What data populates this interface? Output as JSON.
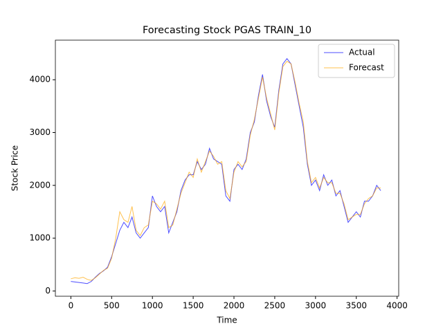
{
  "chart_data": {
    "type": "line",
    "title": "Forecasting Stock PGAS TRAIN_10",
    "xlabel": "Time",
    "ylabel": "Stock Price",
    "x": [
      0,
      50,
      100,
      150,
      200,
      250,
      300,
      350,
      400,
      450,
      500,
      550,
      600,
      650,
      700,
      750,
      800,
      850,
      900,
      950,
      1000,
      1050,
      1100,
      1150,
      1200,
      1250,
      1300,
      1350,
      1400,
      1450,
      1500,
      1550,
      1600,
      1650,
      1700,
      1750,
      1800,
      1850,
      1900,
      1950,
      2000,
      2050,
      2100,
      2150,
      2200,
      2250,
      2300,
      2350,
      2400,
      2450,
      2500,
      2550,
      2600,
      2650,
      2700,
      2750,
      2800,
      2850,
      2900,
      2950,
      3000,
      3050,
      3100,
      3150,
      3200,
      3250,
      3300,
      3350,
      3400,
      3450,
      3500,
      3550,
      3600,
      3650,
      3700,
      3750,
      3800
    ],
    "series": [
      {
        "name": "Actual",
        "color": "#0000ff",
        "values": [
          180,
          170,
          160,
          150,
          140,
          180,
          260,
          330,
          380,
          450,
          650,
          900,
          1150,
          1300,
          1200,
          1400,
          1100,
          1000,
          1100,
          1200,
          1800,
          1600,
          1500,
          1600,
          1100,
          1300,
          1500,
          1900,
          2100,
          2200,
          2200,
          2450,
          2300,
          2400,
          2700,
          2500,
          2450,
          2400,
          1800,
          1700,
          2300,
          2400,
          2300,
          2500,
          3000,
          3200,
          3700,
          4100,
          3600,
          3300,
          3100,
          3800,
          4300,
          4400,
          4300,
          3900,
          3500,
          3100,
          2400,
          2000,
          2100,
          1900,
          2200,
          2000,
          2100,
          1800,
          1900,
          1600,
          1300,
          1400,
          1500,
          1400,
          1700,
          1700,
          1800,
          2000,
          1900
        ]
      },
      {
        "name": "Forecast",
        "color": "#ffa500",
        "values": [
          230,
          250,
          240,
          260,
          220,
          200,
          250,
          320,
          390,
          430,
          620,
          1000,
          1500,
          1350,
          1300,
          1600,
          1150,
          1050,
          1200,
          1250,
          1700,
          1650,
          1550,
          1700,
          1200,
          1250,
          1550,
          1850,
          2050,
          2250,
          2150,
          2500,
          2250,
          2450,
          2650,
          2550,
          2400,
          2450,
          1900,
          1750,
          2250,
          2450,
          2350,
          2450,
          2950,
          3250,
          3650,
          4050,
          3650,
          3350,
          3050,
          3750,
          4250,
          4350,
          4300,
          3950,
          3550,
          3200,
          2450,
          2050,
          2150,
          1950,
          2150,
          2050,
          2050,
          1850,
          1850,
          1650,
          1350,
          1400,
          1450,
          1450,
          1650,
          1750,
          1800,
          1950,
          1950
        ]
      }
    ],
    "xlim": [
      -190,
      4020
    ],
    "ylim": [
      -100,
      4750
    ],
    "xticks": [
      0,
      500,
      1000,
      1500,
      2000,
      2500,
      3000,
      3500,
      4000
    ],
    "yticks": [
      0,
      1000,
      2000,
      3000,
      4000
    ],
    "legend": "upper right",
    "grid": false
  }
}
